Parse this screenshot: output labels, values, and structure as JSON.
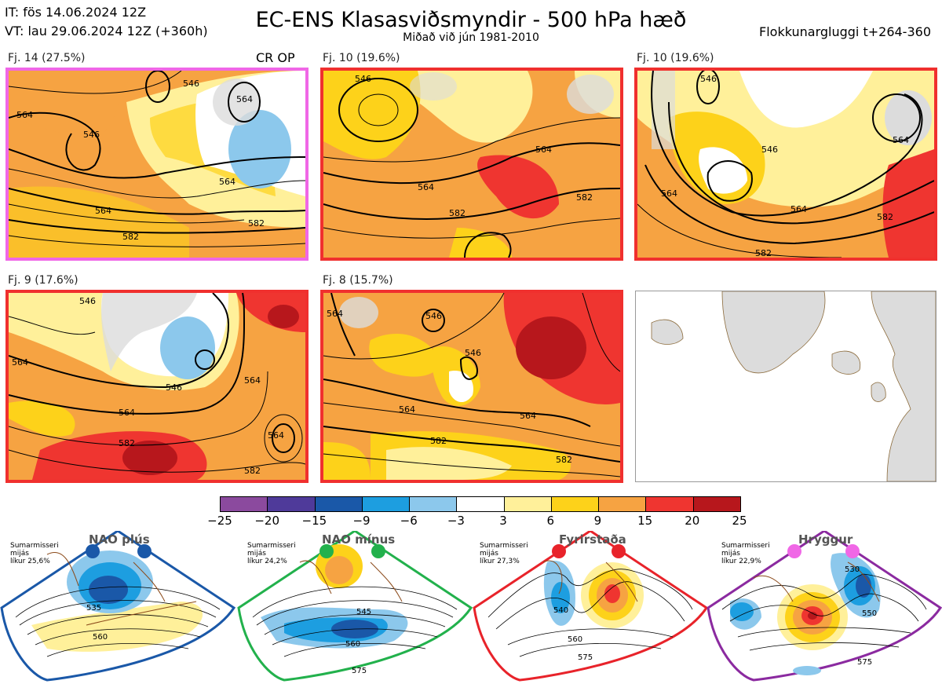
{
  "header": {
    "initial_time": "IT: fös 14.06.2024 12Z",
    "valid_time": "VT: lau 29.06.2024 12Z  (+360h)",
    "title": "EC-ENS Klasasviðsmyndir - 500 hPa hæð",
    "subtitle": "Miðað við jún 1981-2010",
    "cluster_window": "Flokkunargluggi t+264-360"
  },
  "panels": [
    {
      "label": "Fj. 14 (27.5%)",
      "tag": "CR OP",
      "border_color": "#f067e6",
      "contours": [
        "546",
        "546",
        "564",
        "564",
        "564",
        "564",
        "582",
        "582"
      ]
    },
    {
      "label": "Fj. 10 (19.6%)",
      "border_color": "#f0302e",
      "contours": [
        "546",
        "564",
        "564",
        "582",
        "582"
      ]
    },
    {
      "label": "Fj. 10 (19.6%)",
      "border_color": "#f0302e",
      "contours": [
        "546",
        "546",
        "564",
        "564",
        "564",
        "582",
        "582"
      ]
    },
    {
      "label": "Fj. 9 (17.6%)",
      "border_color": "#f0302e",
      "contours": [
        "546",
        "546",
        "564",
        "564",
        "564",
        "564",
        "582",
        "582"
      ]
    },
    {
      "label": "Fj. 8 (15.7%)",
      "border_color": "#f0302e",
      "contours": [
        "546",
        "546",
        "564",
        "564",
        "564",
        "582",
        "582"
      ]
    }
  ],
  "colorbar": {
    "colors": [
      "#8b4a9e",
      "#4f3a9a",
      "#1a58a8",
      "#1d9ee0",
      "#8cc8ec",
      "#ffffff",
      "#fff09a",
      "#fdd21a",
      "#f6a342",
      "#ef3530",
      "#b7171c"
    ],
    "ticks": [
      "−25",
      "−20",
      "−15",
      "−9",
      "−6",
      "−3",
      "3",
      "6",
      "9",
      "15",
      "20",
      "25"
    ]
  },
  "regimes": [
    {
      "name": "NAO plús",
      "note": "Sumarmisseri\nmijás\nlíkur 25,6%",
      "color": "#1a58a8",
      "contours": [
        "535",
        "560"
      ]
    },
    {
      "name": "NAO mínus",
      "note": "Sumarmisseri\nmijás\nlíkur 24,2%",
      "color": "#22b14c",
      "contours": [
        "545",
        "560",
        "575"
      ]
    },
    {
      "name": "Fyrirstaða",
      "note": "Sumarmisseri\nmijás\nlíkur 27,3%",
      "color": "#e8232a",
      "contours": [
        "540",
        "560",
        "575"
      ]
    },
    {
      "name": "Hryggur",
      "note": "Sumarmisseri\nmijás\nlíkur 22,9%",
      "color": "#f067e6",
      "contours": [
        "530",
        "550",
        "575"
      ]
    }
  ]
}
